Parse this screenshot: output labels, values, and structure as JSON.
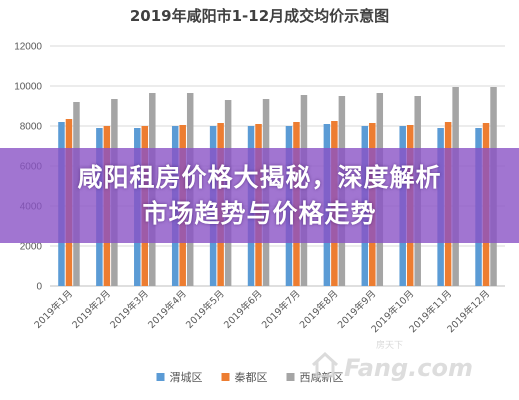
{
  "chart_data": {
    "type": "bar",
    "title": "2019年咸阳市1-12月成交均价示意图",
    "xlabel": "",
    "ylabel": "",
    "ylim": [
      0,
      12000
    ],
    "yticks": [
      "0",
      "2000",
      "4000",
      "6000",
      "8000",
      "10000",
      "12000"
    ],
    "grid": true,
    "legend_position": "bottom",
    "categories": [
      "2019年1月",
      "2019年2月",
      "2019年3月",
      "2019年4月",
      "2019年5月",
      "2019年6月",
      "2019年7月",
      "2019年8月",
      "2019年9月",
      "2019年10月",
      "2019年11月",
      "2019年12月"
    ],
    "series": [
      {
        "name": "渭城区",
        "color": "#5B9BD5",
        "values": [
          8200,
          7900,
          7900,
          8000,
          8000,
          8000,
          8000,
          8100,
          8000,
          8000,
          7900,
          7900
        ]
      },
      {
        "name": "秦都区",
        "color": "#ED7D31",
        "values": [
          8350,
          8000,
          8000,
          8050,
          8150,
          8100,
          8200,
          8250,
          8150,
          8050,
          8200,
          8150
        ]
      },
      {
        "name": "西咸新区",
        "color": "#A5A5A5",
        "values": [
          9200,
          9350,
          9650,
          9650,
          9300,
          9350,
          9550,
          9500,
          9650,
          9500,
          9950,
          9950
        ]
      }
    ]
  },
  "banner": {
    "line1": "咸阳租房价格大揭秘，深度解析",
    "line2": "市场趋势与价格走势"
  },
  "watermark": {
    "small": "房天下",
    "main": "Fang.com"
  }
}
